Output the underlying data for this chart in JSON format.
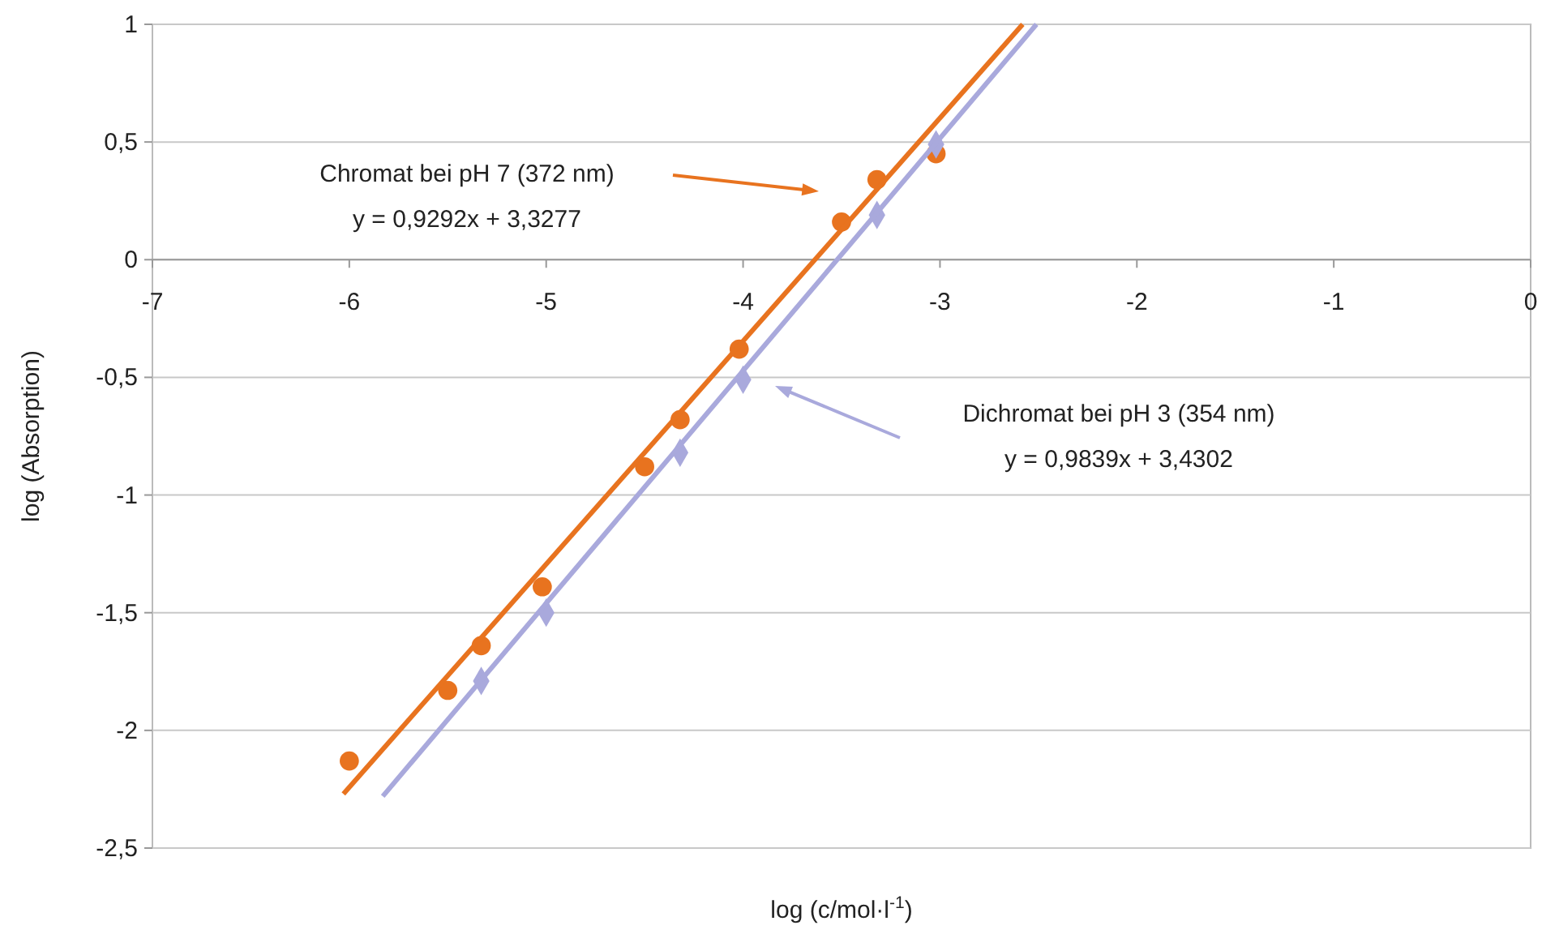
{
  "chart_data": {
    "type": "scatter",
    "xlabel": "log (c/mol·l$^{-1}$)",
    "ylabel": "log (Absorption)",
    "xlim": [
      -7,
      0
    ],
    "xticks": [
      -7,
      -6,
      -5,
      -4,
      -3,
      -2,
      -1,
      0
    ],
    "ylim": [
      -2.5,
      1
    ],
    "yticks": [
      {
        "value": -2.5,
        "label": "-2,5"
      },
      -2,
      {
        "value": -1.5,
        "label": "-1,5"
      },
      -1,
      {
        "value": -0.5,
        "label": "-0,5"
      },
      0,
      {
        "value": 0.5,
        "label": "0,5"
      },
      1
    ],
    "grid": "y",
    "series": [
      {
        "color": "#e8731f",
        "marker": "circle",
        "x": [
          -6,
          -5.5,
          -5.33,
          -5.02,
          -4.5,
          -4.32,
          -4.02,
          -3.5,
          -3.32,
          -3.02
        ],
        "values": [
          -2.13,
          -1.83,
          -1.64,
          -1.39,
          -0.88,
          -0.68,
          -0.38,
          0.16,
          0.34,
          0.45
        ]
      },
      {
        "color": "#a9a9dc",
        "marker": "diamond",
        "x": [
          -5.33,
          -5.0,
          -4.32,
          -4.0,
          -3.32,
          -3.02
        ],
        "values": [
          -1.79,
          -1.5,
          -0.82,
          -0.51,
          0.19,
          0.49
        ]
      },
      {
        "type": "line",
        "color": "#e8731f",
        "marker": "none",
        "x": [
          -6.03,
          -2.58
        ],
        "values": [
          -2.27,
          1
        ]
      },
      {
        "type": "line",
        "color": "#a9a9dc",
        "marker": "none",
        "x": [
          -5.83,
          -2.51
        ],
        "values": [
          -2.28,
          1
        ]
      }
    ],
    "annotations": [
      "Chromat bei pH 7 (372 nm)\ny = 0,9292x + 3,3277",
      "Dichromat bei pH 3 (354 nm)\ny = 0,9839x + 3,4302"
    ]
  }
}
